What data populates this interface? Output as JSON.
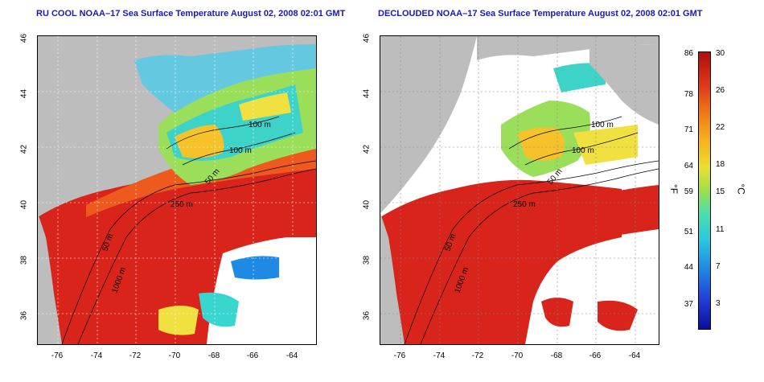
{
  "left_panel": {
    "title": "RU COOL NOAA–17 Sea Surface Temperature August 02, 2008 02:01 GMT",
    "contour_labels": [
      "100 m",
      "100 m",
      "50 m",
      "250 m",
      "50 m",
      "1000 m"
    ]
  },
  "right_panel": {
    "title": "DECLOUDED NOAA–17 Sea Surface Temperature August 02, 2008 02:01 GMT",
    "contour_labels": [
      "100 m",
      "100 m",
      "50 m",
      "250 m",
      "50 m",
      "1000 m"
    ]
  },
  "axes": {
    "y_ticks": [
      "46",
      "44",
      "42",
      "40",
      "38",
      "36"
    ],
    "x_ticks": [
      "-76",
      "-74",
      "-72",
      "-70",
      "-68",
      "-66",
      "-64"
    ]
  },
  "colorbar": {
    "fahrenheit_ticks": [
      "86",
      "78",
      "71",
      "64",
      "59",
      "51",
      "44",
      "37"
    ],
    "celsius_ticks": [
      "30",
      "26",
      "22",
      "18",
      "15",
      "11",
      "7",
      "3"
    ],
    "fahrenheit_unit": "°F",
    "celsius_unit": "°C"
  },
  "colors": {
    "land": "#bdbdbd",
    "warm": "#d8241a",
    "cool": "#39d6d0",
    "cloud": "#ffffff",
    "title": "#1a1ab4"
  }
}
